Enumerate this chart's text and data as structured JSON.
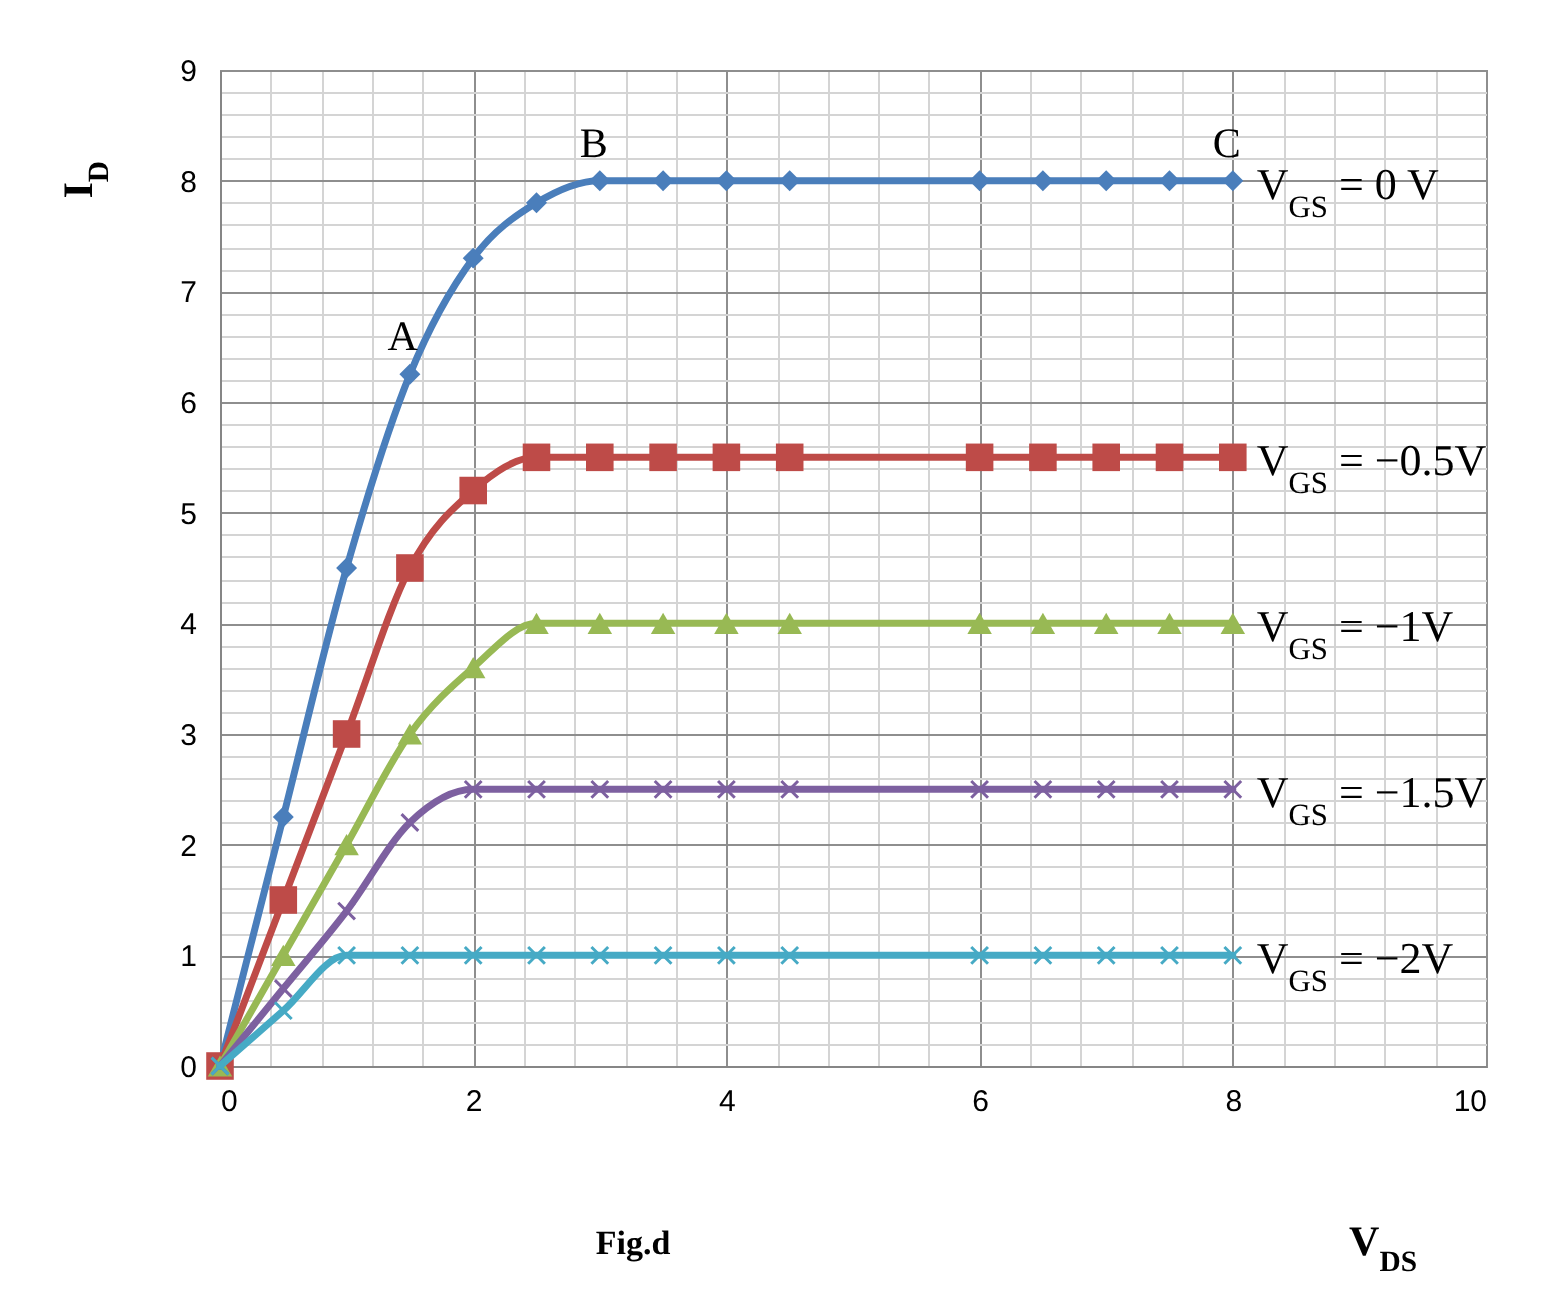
{
  "chart_data": {
    "type": "line",
    "xlabel": "V$_{DS}$",
    "ylabel": "I$_{D}$",
    "x": [
      0,
      0.5,
      1,
      1.5,
      2,
      2.5,
      3,
      3.5,
      4,
      4.5,
      6,
      6.5,
      7,
      7.5,
      8
    ],
    "series": [
      {
        "name": "V$_{GS}$ = 0 V",
        "color": "#4a7ebb",
        "marker": "diamond",
        "values": [
          0,
          2.25,
          4.5,
          6.25,
          7.3,
          7.8,
          8,
          8,
          8,
          8,
          8,
          8,
          8,
          8,
          8
        ]
      },
      {
        "name": "V$_{GS}$ = −0.5V",
        "color": "#be4b48",
        "marker": "square",
        "values": [
          0,
          1.5,
          3,
          4.5,
          5.2,
          5.5,
          5.5,
          5.5,
          5.5,
          5.5,
          5.5,
          5.5,
          5.5,
          5.5,
          5.5
        ]
      },
      {
        "name": "V$_{GS}$ = −1V",
        "color": "#98b954",
        "marker": "triangle",
        "values": [
          0,
          1,
          2,
          3,
          3.6,
          4,
          4,
          4,
          4,
          4,
          4,
          4,
          4,
          4,
          4
        ]
      },
      {
        "name": "V$_{GS}$ = −1.5V",
        "color": "#7d60a0",
        "marker": "cross",
        "values": [
          0,
          0.7,
          1.4,
          2.2,
          2.5,
          2.5,
          2.5,
          2.5,
          2.5,
          2.5,
          2.5,
          2.5,
          2.5,
          2.5,
          2.5
        ]
      },
      {
        "name": "V$_{GS}$ = −2V",
        "color": "#46aac5",
        "marker": "cross",
        "values": [
          0,
          0.5,
          1,
          1,
          1,
          1,
          1,
          1,
          1,
          1,
          1,
          1,
          1,
          1,
          1
        ]
      }
    ],
    "xlim": [
      0,
      10
    ],
    "xticks": [
      0,
      {
        "value": 0.4,
        "label": null
      },
      {
        "value": 0.8,
        "label": null
      },
      {
        "value": 1.2,
        "label": null
      },
      {
        "value": 1.6,
        "label": null
      },
      2,
      {
        "value": 2.4,
        "label": null
      },
      {
        "value": 2.8,
        "label": null
      },
      {
        "value": 3.2,
        "label": null
      },
      {
        "value": 3.6,
        "label": null
      },
      4,
      {
        "value": 4.4,
        "label": null
      },
      {
        "value": 4.8,
        "label": null
      },
      {
        "value": 5.2,
        "label": null
      },
      {
        "value": 5.6,
        "label": null
      },
      6,
      {
        "value": 6.4,
        "label": null
      },
      {
        "value": 6.8,
        "label": null
      },
      {
        "value": 7.2,
        "label": null
      },
      {
        "value": 7.6,
        "label": null
      },
      8,
      {
        "value": 8.4,
        "label": null
      },
      {
        "value": 8.8,
        "label": null
      },
      {
        "value": 9.2,
        "label": null
      },
      {
        "value": 9.6,
        "label": null
      },
      10
    ],
    "ylim": [
      0,
      9
    ],
    "yticks": [
      0,
      {
        "value": 0.2,
        "label": null
      },
      {
        "value": 0.4,
        "label": null
      },
      {
        "value": 0.6,
        "label": null
      },
      {
        "value": 0.8,
        "label": null
      },
      1,
      {
        "value": 1.2,
        "label": null
      },
      {
        "value": 1.4,
        "label": null
      },
      {
        "value": 1.6,
        "label": null
      },
      {
        "value": 1.8,
        "label": null
      },
      2,
      {
        "value": 2.2,
        "label": null
      },
      {
        "value": 2.4,
        "label": null
      },
      {
        "value": 2.6,
        "label": null
      },
      {
        "value": 2.8,
        "label": null
      },
      3,
      {
        "value": 3.2,
        "label": null
      },
      {
        "value": 3.4,
        "label": null
      },
      {
        "value": 3.6,
        "label": null
      },
      {
        "value": 3.8,
        "label": null
      },
      4,
      {
        "value": 4.2,
        "label": null
      },
      {
        "value": 4.4,
        "label": null
      },
      {
        "value": 4.6,
        "label": null
      },
      {
        "value": 4.8,
        "label": null
      },
      5,
      {
        "value": 5.2,
        "label": null
      },
      {
        "value": 5.4,
        "label": null
      },
      {
        "value": 5.6,
        "label": null
      },
      {
        "value": 5.8,
        "label": null
      },
      6,
      {
        "value": 6.2,
        "label": null
      },
      {
        "value": 6.4,
        "label": null
      },
      {
        "value": 6.6,
        "label": null
      },
      {
        "value": 6.8,
        "label": null
      },
      7,
      {
        "value": 7.2,
        "label": null
      },
      {
        "value": 7.4,
        "label": null
      },
      {
        "value": 7.6,
        "label": null
      },
      {
        "value": 7.8,
        "label": null
      },
      8,
      {
        "value": 8.2,
        "label": null
      },
      {
        "value": 8.4,
        "label": null
      },
      {
        "value": 8.6,
        "label": null
      },
      {
        "value": 8.8,
        "label": null
      },
      9
    ],
    "grid": true,
    "legend": false,
    "annotations": [
      {
        "text": "A",
        "x": 1.5,
        "y": 6.25
      },
      {
        "text": "B",
        "x": 3,
        "y": 8
      },
      {
        "text": "C",
        "x": 8,
        "y": 8
      },
      "Fig.d"
    ]
  }
}
